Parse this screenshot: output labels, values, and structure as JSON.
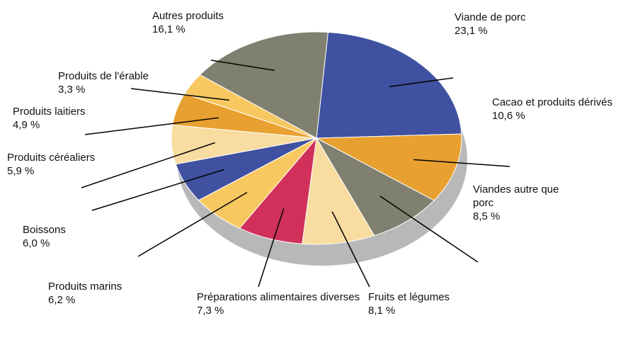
{
  "chart_data": {
    "type": "pie",
    "categories": [
      "Viande de porc",
      "Cacao et produits dérivés",
      "Viandes autre que porc",
      "Fruits et légumes",
      "Préparations alimentaires diverses",
      "Produits marins",
      "Boissons",
      "Produits céréaliers",
      "Produits laitiers",
      "Produits de l'érable",
      "Autres produits"
    ],
    "values": [
      23.1,
      10.6,
      8.5,
      8.1,
      7.3,
      6.2,
      6.0,
      5.9,
      4.9,
      3.3,
      16.1
    ],
    "value_labels": [
      "23,1 %",
      "10,6 %",
      "8,5 %",
      "8,1 %",
      "7,3 %",
      "6,2 %",
      "6,0 %",
      "5,9 %",
      "4,9 %",
      "3,3 %",
      "16,1 %"
    ],
    "colors": [
      "#3f51a0",
      "#e8a030",
      "#808070",
      "#f8dca0",
      "#d0305a",
      "#f8c860",
      "#3f51a0",
      "#f8dca0",
      "#e8a030",
      "#f8c860",
      "#808070"
    ]
  }
}
